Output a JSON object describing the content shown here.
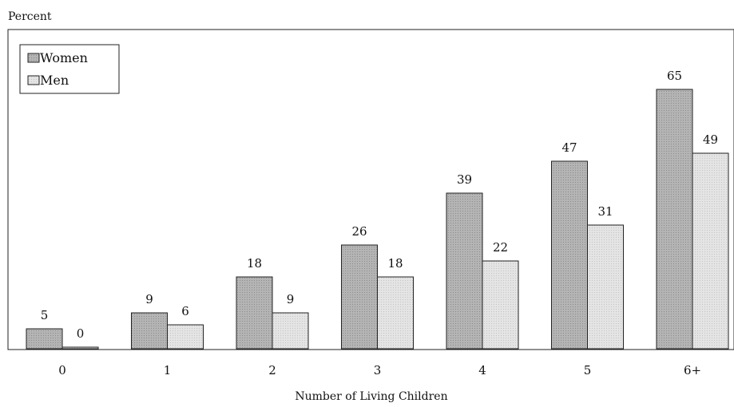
{
  "chart_data": {
    "type": "bar",
    "ylabel": "Percent",
    "xlabel": "Number of Living Children",
    "categories": [
      "0",
      "1",
      "2",
      "3",
      "4",
      "5",
      "6+"
    ],
    "series": [
      {
        "name": "Women",
        "values": [
          5,
          9,
          18,
          26,
          39,
          47,
          65
        ],
        "color": "#b0b0b0"
      },
      {
        "name": "Men",
        "values": [
          0,
          6,
          9,
          18,
          22,
          31,
          49
        ],
        "color": "#e2e2e2"
      }
    ],
    "ylim": [
      0,
      80
    ],
    "grid": false,
    "legend_position": "top-left",
    "data_labels": true
  }
}
